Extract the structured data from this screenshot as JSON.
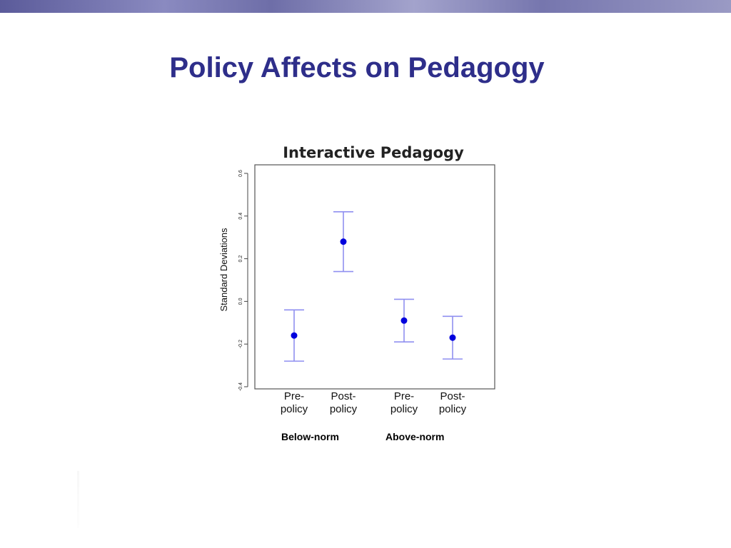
{
  "slide": {
    "title": "Policy Affects on Pedagogy",
    "title_color": "#2e2e8a",
    "band_colors": [
      "#5b5b9a",
      "#8a8ac0",
      "#6e6ea8",
      "#a3a3cc",
      "#7676ae",
      "#9a9ac4"
    ]
  },
  "groups": [
    "Below-norm",
    "Above-norm"
  ],
  "chart_data": {
    "type": "scatter",
    "title": "Interactive Pedagogy",
    "xlabel": "",
    "ylabel": "Standard Deviations",
    "categories": [
      "Pre-\npolicy",
      "Post-\npolicy",
      "Pre-\npolicy",
      "Post-\npolicy"
    ],
    "values": [
      -0.16,
      0.28,
      -0.09,
      -0.17
    ],
    "error_low": [
      -0.28,
      0.14,
      -0.19,
      -0.27
    ],
    "error_high": [
      -0.04,
      0.42,
      0.01,
      -0.07
    ],
    "yticks": [
      -0.4,
      -0.2,
      0.0,
      0.2,
      0.4,
      0.6
    ],
    "ytick_labels": [
      "-0.4",
      "-0.2",
      "0.0",
      "0.2",
      "0.4",
      "0.6"
    ],
    "ylim": [
      -0.41,
      0.64
    ],
    "grid": false,
    "point_color": "#0000dd",
    "errorbar_color": "#8f8ff0"
  }
}
